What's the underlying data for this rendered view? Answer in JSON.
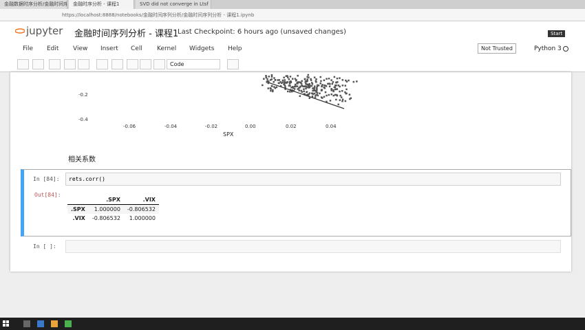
{
  "browser": {
    "tabs": [
      "金融数据时序分析/金融时间序列分析",
      "金融时序分析 - 课程1",
      "SVD did not converge in Ltsf"
    ],
    "url": "https://localhost:8888/notebooks/金融时间序列分析/金融时间序列分析 - 课程1.ipynb"
  },
  "header": {
    "logo": "jupyter",
    "title": "金融时间序列分析 - 课程1",
    "checkpoint": "Last Checkpoint: 6 hours ago (unsaved changes)",
    "button": "Start"
  },
  "menu": [
    "File",
    "Edit",
    "View",
    "Insert",
    "Cell",
    "Kernel",
    "Widgets",
    "Help"
  ],
  "status": {
    "trusted": "Not Trusted",
    "kernel": "Python 3"
  },
  "toolbar": {
    "cell_type": "Code"
  },
  "plot": {
    "yticks": [
      "-0.2",
      "-0.4"
    ],
    "xticks": [
      "-0.06",
      "-0.04",
      "-0.02",
      "0.00",
      "0.02",
      "0.04"
    ],
    "xlabel": "SPX"
  },
  "markdown": "相关系数",
  "cells": [
    {
      "prompt_in": "In [84]:",
      "code": "rets.corr()",
      "prompt_out": "Out[84]:",
      "table": {
        "columns": [
          ".SPX",
          ".VIX"
        ],
        "rows": [
          [
            ".SPX",
            "1.000000",
            "-0.806532"
          ],
          [
            ".VIX",
            "-0.806532",
            "1.000000"
          ]
        ]
      }
    },
    {
      "prompt_in": "In [ ]:"
    }
  ]
}
